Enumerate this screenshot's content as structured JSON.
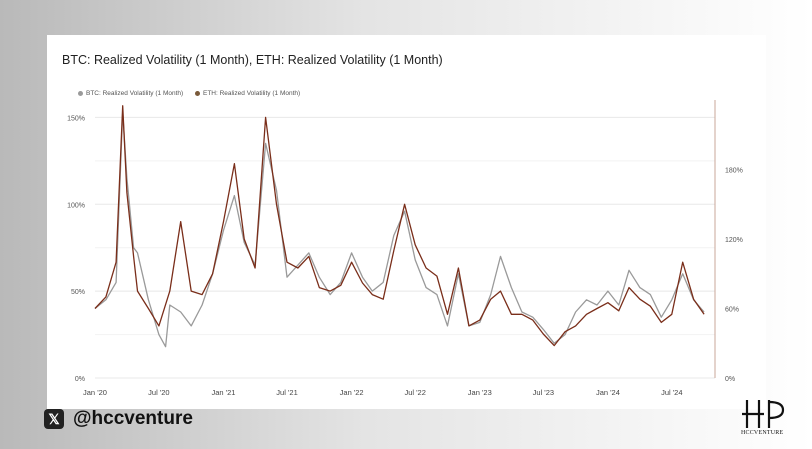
{
  "chart_data": {
    "type": "line",
    "title": "BTC: Realized Volatility (1 Month), ETH: Realized Volatility (1 Month)",
    "legend_placement": "top-left",
    "grid": true,
    "x_ticks": [
      "Jan '20",
      "Jul '20",
      "Jan '21",
      "Jul '21",
      "Jan '22",
      "Jul '22",
      "Jan '23",
      "Jul '23",
      "Jan '24",
      "Jul '24"
    ],
    "x_range": [
      "2020-01-01",
      "2024-11-01"
    ],
    "y_left_ticks": [
      "0%",
      "50%",
      "100%",
      "150%"
    ],
    "y_left_range": [
      0,
      1.6
    ],
    "y_right_ticks": [
      "0%",
      "60%",
      "120%",
      "180%"
    ],
    "y_right_range": [
      0,
      2.4
    ],
    "series": [
      {
        "name": "BTC: Realized Volatility (1 Month)",
        "color": "#9a9a9a",
        "axis": "left",
        "points": [
          [
            "2020-01",
            0.4
          ],
          [
            "2020-02",
            0.45
          ],
          [
            "2020-03",
            0.55
          ],
          [
            "2020-03-20",
            1.53
          ],
          [
            "2020-04",
            1.15
          ],
          [
            "2020-04-20",
            0.75
          ],
          [
            "2020-05",
            0.72
          ],
          [
            "2020-06",
            0.45
          ],
          [
            "2020-07",
            0.25
          ],
          [
            "2020-07-20",
            0.18
          ],
          [
            "2020-08",
            0.42
          ],
          [
            "2020-09",
            0.38
          ],
          [
            "2020-10",
            0.3
          ],
          [
            "2020-11",
            0.42
          ],
          [
            "2020-12",
            0.6
          ],
          [
            "2021-01",
            0.85
          ],
          [
            "2021-02",
            1.05
          ],
          [
            "2021-03",
            0.78
          ],
          [
            "2021-04",
            0.65
          ],
          [
            "2021-05",
            1.35
          ],
          [
            "2021-06",
            1.08
          ],
          [
            "2021-07",
            0.58
          ],
          [
            "2021-08",
            0.65
          ],
          [
            "2021-09",
            0.72
          ],
          [
            "2021-10",
            0.58
          ],
          [
            "2021-11",
            0.48
          ],
          [
            "2021-12",
            0.55
          ],
          [
            "2022-01",
            0.72
          ],
          [
            "2022-02",
            0.58
          ],
          [
            "2022-03",
            0.5
          ],
          [
            "2022-04",
            0.55
          ],
          [
            "2022-05",
            0.82
          ],
          [
            "2022-06",
            0.96
          ],
          [
            "2022-07",
            0.68
          ],
          [
            "2022-08",
            0.52
          ],
          [
            "2022-09",
            0.48
          ],
          [
            "2022-10",
            0.3
          ],
          [
            "2022-11",
            0.6
          ],
          [
            "2022-12",
            0.3
          ],
          [
            "2023-01",
            0.32
          ],
          [
            "2023-02",
            0.48
          ],
          [
            "2023-03",
            0.7
          ],
          [
            "2023-04",
            0.52
          ],
          [
            "2023-05",
            0.38
          ],
          [
            "2023-06",
            0.35
          ],
          [
            "2023-07",
            0.28
          ],
          [
            "2023-08",
            0.2
          ],
          [
            "2023-09",
            0.25
          ],
          [
            "2023-10",
            0.38
          ],
          [
            "2023-11",
            0.45
          ],
          [
            "2023-12",
            0.42
          ],
          [
            "2024-01",
            0.5
          ],
          [
            "2024-02",
            0.42
          ],
          [
            "2024-03",
            0.62
          ],
          [
            "2024-04",
            0.52
          ],
          [
            "2024-05",
            0.48
          ],
          [
            "2024-06",
            0.35
          ],
          [
            "2024-07",
            0.45
          ],
          [
            "2024-08",
            0.6
          ],
          [
            "2024-09",
            0.45
          ],
          [
            "2024-10",
            0.38
          ]
        ]
      },
      {
        "name": "ETH: Realized Volatility (1 Month)",
        "color": "#7a2e1a",
        "axis": "right",
        "points": [
          [
            "2020-01",
            0.6
          ],
          [
            "2020-02",
            0.7
          ],
          [
            "2020-03",
            1.0
          ],
          [
            "2020-03-20",
            2.35
          ],
          [
            "2020-04",
            1.6
          ],
          [
            "2020-04-20",
            1.05
          ],
          [
            "2020-05",
            0.75
          ],
          [
            "2020-06",
            0.6
          ],
          [
            "2020-07",
            0.45
          ],
          [
            "2020-08",
            0.75
          ],
          [
            "2020-09",
            1.35
          ],
          [
            "2020-10",
            0.75
          ],
          [
            "2020-11",
            0.72
          ],
          [
            "2020-12",
            0.9
          ],
          [
            "2021-01",
            1.35
          ],
          [
            "2021-02",
            1.85
          ],
          [
            "2021-03",
            1.2
          ],
          [
            "2021-04",
            0.95
          ],
          [
            "2021-05",
            2.25
          ],
          [
            "2021-06",
            1.5
          ],
          [
            "2021-07",
            1.0
          ],
          [
            "2021-08",
            0.95
          ],
          [
            "2021-09",
            1.05
          ],
          [
            "2021-10",
            0.78
          ],
          [
            "2021-11",
            0.75
          ],
          [
            "2021-12",
            0.8
          ],
          [
            "2022-01",
            1.0
          ],
          [
            "2022-02",
            0.82
          ],
          [
            "2022-03",
            0.72
          ],
          [
            "2022-04",
            0.68
          ],
          [
            "2022-05",
            1.1
          ],
          [
            "2022-06",
            1.5
          ],
          [
            "2022-07",
            1.15
          ],
          [
            "2022-08",
            0.95
          ],
          [
            "2022-09",
            0.88
          ],
          [
            "2022-10",
            0.55
          ],
          [
            "2022-11",
            0.95
          ],
          [
            "2022-12",
            0.45
          ],
          [
            "2023-01",
            0.5
          ],
          [
            "2023-02",
            0.68
          ],
          [
            "2023-03",
            0.75
          ],
          [
            "2023-04",
            0.55
          ],
          [
            "2023-05",
            0.55
          ],
          [
            "2023-06",
            0.5
          ],
          [
            "2023-07",
            0.38
          ],
          [
            "2023-08",
            0.28
          ],
          [
            "2023-09",
            0.4
          ],
          [
            "2023-10",
            0.45
          ],
          [
            "2023-11",
            0.55
          ],
          [
            "2023-12",
            0.6
          ],
          [
            "2024-01",
            0.65
          ],
          [
            "2024-02",
            0.58
          ],
          [
            "2024-03",
            0.78
          ],
          [
            "2024-04",
            0.68
          ],
          [
            "2024-05",
            0.62
          ],
          [
            "2024-06",
            0.48
          ],
          [
            "2024-07",
            0.55
          ],
          [
            "2024-08",
            1.0
          ],
          [
            "2024-09",
            0.68
          ],
          [
            "2024-10",
            0.55
          ]
        ]
      }
    ]
  },
  "footer": {
    "handle": "@hccventure",
    "brand_text": "HCCVENTURE"
  }
}
